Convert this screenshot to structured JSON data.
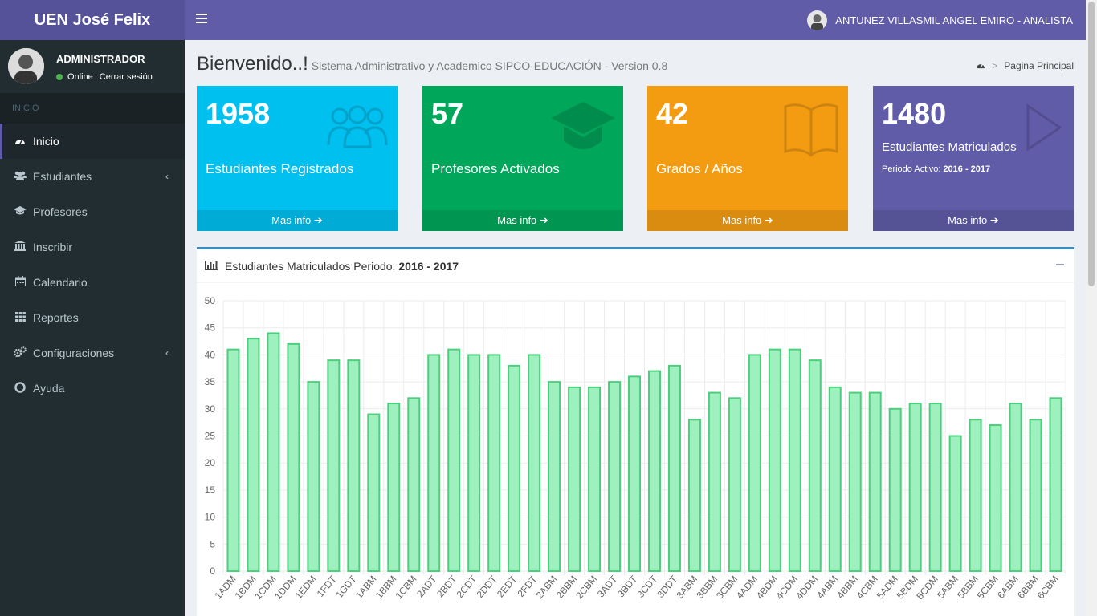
{
  "app": {
    "logo_text": "UEN José Felix"
  },
  "navbar": {
    "user_label": "ANTUNEZ VILLASMIL ANGEL EMIRO - ANALISTA"
  },
  "sidebar": {
    "user_name": "ADMINISTRADOR",
    "status": "Online",
    "logout": "Cerrar sesión",
    "header": "INICIO",
    "items": [
      {
        "label": "Inicio",
        "icon": "dashboard-icon"
      },
      {
        "label": "Estudiantes",
        "icon": "users-icon"
      },
      {
        "label": "Profesores",
        "icon": "graduation-cap-icon"
      },
      {
        "label": "Inscribir",
        "icon": "institution-icon"
      },
      {
        "label": "Calendario",
        "icon": "calendar-icon"
      },
      {
        "label": "Reportes",
        "icon": "th-icon"
      },
      {
        "label": "Configuraciones",
        "icon": "cogs-icon"
      },
      {
        "label": "Ayuda",
        "icon": "life-ring-icon"
      }
    ]
  },
  "page": {
    "title": "Bienvenido..!",
    "subtitle": "Sistema Administrativo y Academico SIPCO-EDUCACIÓN - Version 0.8",
    "breadcrumb": "Pagina Principal"
  },
  "boxes": [
    {
      "value": "1958",
      "label": "Estudiantes Registrados",
      "footer": "Mas info",
      "color": "#00c0ef"
    },
    {
      "value": "57",
      "label": "Profesores Activados",
      "footer": "Mas info",
      "color": "#00a65a"
    },
    {
      "value": "42",
      "label": "Grados / Años",
      "footer": "Mas info",
      "color": "#f39c12"
    },
    {
      "value": "1480",
      "label": "Estudiantes Matriculados",
      "period_label": "Periodo Activo:",
      "period_value": "2016 - 2017",
      "footer": "Mas info",
      "color": "#605ca8"
    }
  ],
  "chart_box": {
    "title": "Estudiantes Matriculados Periodo:",
    "period": "2016 - 2017"
  },
  "chart_data": {
    "type": "bar",
    "categories": [
      "1ADM",
      "1BDM",
      "1CDM",
      "1DDM",
      "1EDM",
      "1FDT",
      "1GDT",
      "1ABM",
      "1BBM",
      "1CBM",
      "2ADT",
      "2BDT",
      "2CDT",
      "2DDT",
      "2EDT",
      "2FDT",
      "2ABM",
      "2BBM",
      "2CBM",
      "3ADT",
      "3BDT",
      "3CDT",
      "3DDT",
      "3ABM",
      "3BBM",
      "3CBM",
      "4ADM",
      "4BDM",
      "4CDM",
      "4DDM",
      "4ABM",
      "4BBM",
      "4CBM",
      "5ADM",
      "5BDM",
      "5CDM",
      "5ABM",
      "5BBM",
      "5CBM",
      "6ABM",
      "6BBM",
      "6CBM"
    ],
    "values": [
      41,
      43,
      44,
      42,
      35,
      39,
      39,
      29,
      31,
      32,
      40,
      41,
      40,
      40,
      38,
      40,
      35,
      34,
      34,
      35,
      36,
      37,
      38,
      28,
      33,
      32,
      40,
      41,
      41,
      39,
      34,
      33,
      33,
      30,
      31,
      31,
      25,
      28,
      27,
      31,
      28,
      32
    ],
    "ylim": [
      0,
      50
    ],
    "yticks": [
      0,
      5,
      10,
      15,
      20,
      25,
      30,
      35,
      40,
      45,
      50
    ],
    "bar_fill": "#9ef0be",
    "bar_stroke": "#4ccf7d",
    "grid": true
  }
}
